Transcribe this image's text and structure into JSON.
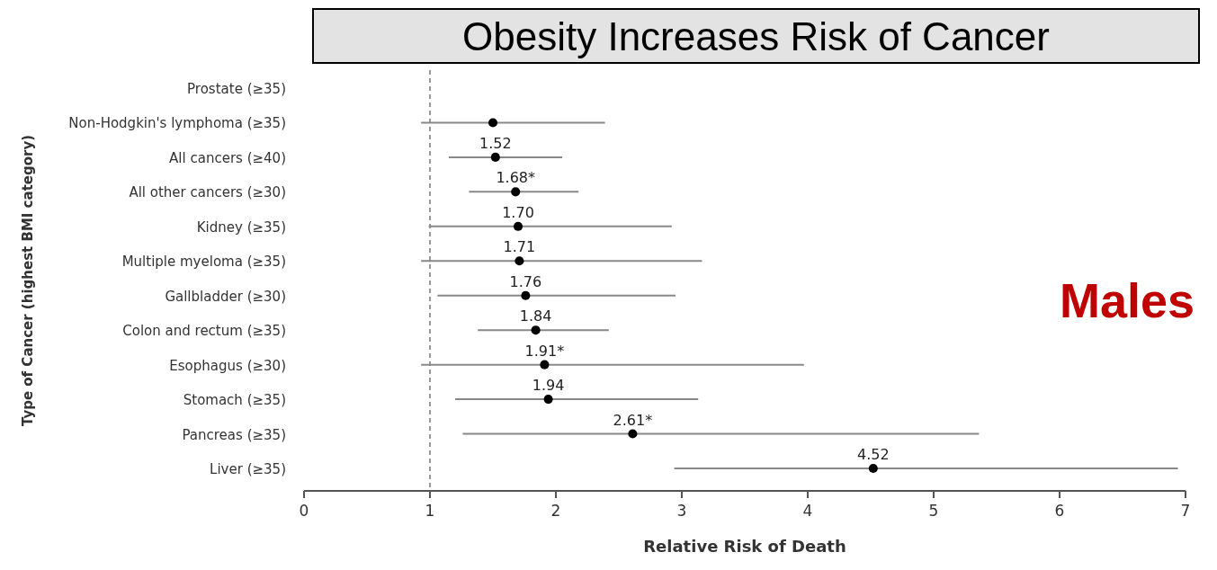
{
  "chart_data": {
    "type": "scatter",
    "orientation": "horizontal",
    "title": "Obesity Increases Risk of Cancer",
    "xlabel": "Relative Risk of Death",
    "ylabel": "Type of Cancer (highest BMI category)",
    "categories": [
      "Prostate (≥35)",
      "Non-Hodgkin's lymphoma (≥35)",
      "All cancers (≥40)",
      "All other cancers (≥30)",
      "Kidney (≥35)",
      "Multiple myeloma (≥35)",
      "Gallbladder (≥30)",
      "Colon and rectum (≥35)",
      "Esophagus (≥30)",
      "Stomach (≥35)",
      "Pancreas (≥35)",
      "Liver (≥35)"
    ],
    "series": [
      {
        "color": "#000000",
        "values": [
          null,
          1.5,
          1.52,
          1.68,
          1.7,
          1.71,
          1.76,
          1.84,
          1.91,
          1.94,
          2.61,
          4.52
        ],
        "value_labels": [
          null,
          null,
          "1.52",
          "1.68*",
          "1.70",
          "1.71",
          "1.76",
          "1.84",
          "1.91*",
          "1.94",
          "2.61*",
          "4.52"
        ],
        "errors": [
          null,
          [
            0.93,
            2.39
          ],
          [
            1.15,
            2.05
          ],
          [
            1.31,
            2.18
          ],
          [
            0.99,
            2.92
          ],
          [
            0.93,
            3.16
          ],
          [
            1.06,
            2.95
          ],
          [
            1.38,
            2.42
          ],
          [
            0.93,
            3.97
          ],
          [
            1.2,
            3.13
          ],
          [
            1.26,
            5.36
          ],
          [
            2.94,
            6.94
          ]
        ]
      }
    ],
    "xlim": [
      0,
      7
    ],
    "xticks": [
      0,
      1,
      2,
      3,
      4,
      5,
      6,
      7
    ],
    "marker": "circle",
    "grid": false,
    "ref_lines": [
      {
        "axis": "x",
        "value": 1,
        "line_style": "dashed",
        "color": "#999999"
      }
    ],
    "annotations": [
      "Males"
    ]
  }
}
